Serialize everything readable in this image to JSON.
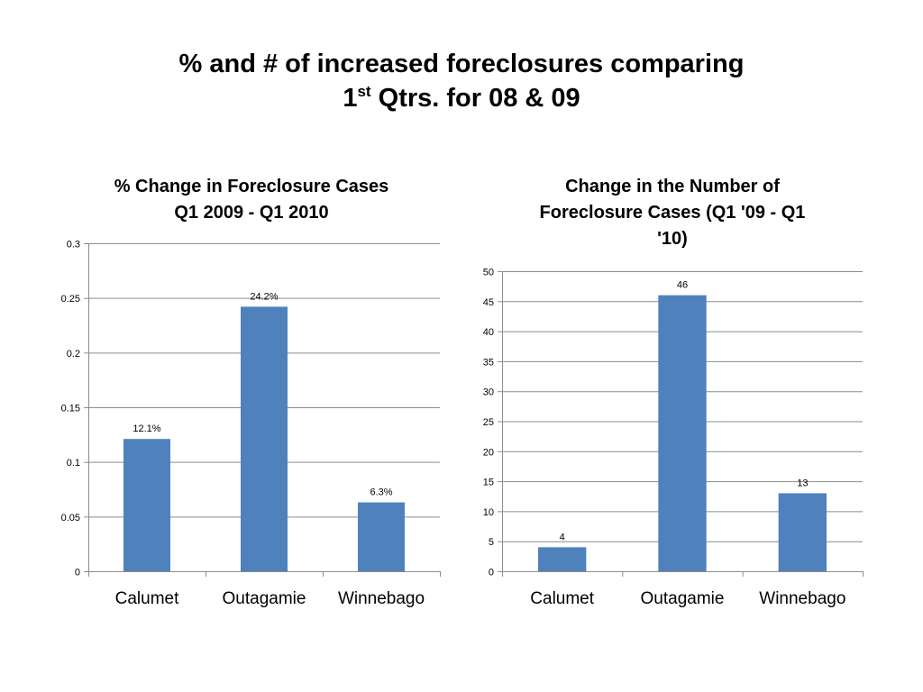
{
  "slide": {
    "title_line1": "% and # of increased foreclosures comparing",
    "title_line2_pre": "1",
    "title_line2_sup": "st",
    "title_line2_post": " Qtrs. for 08 & 09"
  },
  "chart_data": [
    {
      "type": "bar",
      "title_line1": "% Change in Foreclosure Cases",
      "title_line2": "Q1 2009 - Q1 2010",
      "categories": [
        "Calumet",
        "Outagamie",
        "Winnebago"
      ],
      "values": [
        0.121,
        0.242,
        0.063
      ],
      "data_labels": [
        "12.1%",
        "24.2%",
        "6.3%"
      ],
      "ylim": [
        0,
        0.3
      ],
      "yticks": [
        "0",
        "0.05",
        "0.1",
        "0.15",
        "0.2",
        "0.25",
        "0.3"
      ],
      "grid": true,
      "bar_color": "#4F81BD"
    },
    {
      "type": "bar",
      "title_line1": "Change in the Number of",
      "title_line2": "Foreclosure Cases (Q1 '09 - Q1",
      "title_line3": "'10)",
      "categories": [
        "Calumet",
        "Outagamie",
        "Winnebago"
      ],
      "values": [
        4,
        46,
        13
      ],
      "data_labels": [
        "4",
        "46",
        "13"
      ],
      "ylim": [
        0,
        50
      ],
      "yticks": [
        "0",
        "5",
        "10",
        "15",
        "20",
        "25",
        "30",
        "35",
        "40",
        "45",
        "50"
      ],
      "grid": true,
      "bar_color": "#4F81BD"
    }
  ]
}
